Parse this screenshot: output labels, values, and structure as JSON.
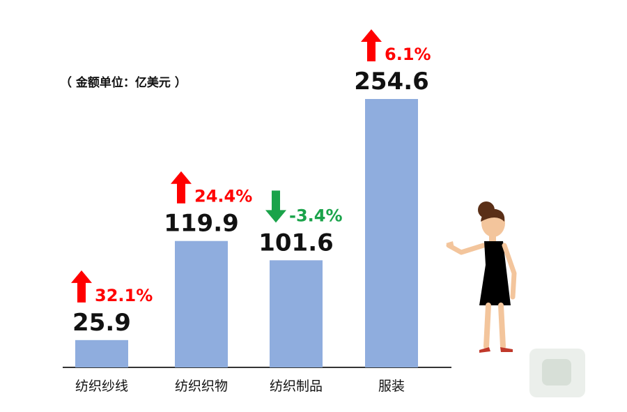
{
  "unit_note": "（ 金额单位：亿美元 ）",
  "chart_data": {
    "type": "bar",
    "categories": [
      "纺织纱线",
      "纺织织物",
      "纺织制品",
      "服装"
    ],
    "values": [
      25.9,
      119.9,
      101.6,
      254.6
    ],
    "value_labels": [
      "25.9",
      "119.9",
      "101.6",
      "254.6"
    ],
    "changes": [
      {
        "label": "32.1%",
        "direction": "up"
      },
      {
        "label": "24.4%",
        "direction": "up"
      },
      {
        "label": "-3.4%",
        "direction": "down"
      },
      {
        "label": "6.1%",
        "direction": "up"
      }
    ],
    "ylim": [
      0,
      254.6
    ],
    "grid": false,
    "legend": "none"
  },
  "colors": {
    "bar": "#8fadde",
    "up": "#ff0000",
    "down": "#1aa34a",
    "axis": "#333333"
  }
}
